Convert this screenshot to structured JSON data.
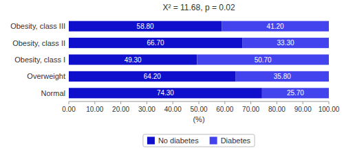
{
  "chart_data": {
    "type": "bar",
    "orientation": "horizontal",
    "stacked": true,
    "title": "X² = 11.68, p = 0.02",
    "xlabel": "(%)",
    "categories": [
      "Normal",
      "Overweight",
      "Obesity, class I",
      "Obesity, class II",
      "Obesity, class III"
    ],
    "series": [
      {
        "name": "No diabetes",
        "color": "#1010cc",
        "values": [
          74.3,
          64.2,
          49.3,
          66.7,
          58.8
        ],
        "value_labels": [
          "74.30",
          "64.20",
          "49.30",
          "66.70",
          "58.80"
        ]
      },
      {
        "name": "Diabetes",
        "color": "#4444ee",
        "values": [
          25.7,
          35.8,
          50.7,
          33.3,
          41.2
        ],
        "value_labels": [
          "25.70",
          "35.80",
          "50.70",
          "33.30",
          "41.20"
        ]
      }
    ],
    "xlim": [
      0,
      100
    ],
    "xticks": [
      {
        "value": 0,
        "label": "0.00"
      },
      {
        "value": 10,
        "label": "10.00"
      },
      {
        "value": 20,
        "label": "20.00"
      },
      {
        "value": 30,
        "label": "30.00"
      },
      {
        "value": 40,
        "label": "40.00"
      },
      {
        "value": 50,
        "label": "50.00"
      },
      {
        "value": 60,
        "label": "60.00"
      },
      {
        "value": 70,
        "label": "70.00"
      },
      {
        "value": 80,
        "label": "80.00"
      },
      {
        "value": 90,
        "label": "90.00"
      },
      {
        "value": 100,
        "label": "100.00"
      }
    ],
    "data_labels": true,
    "grid": false,
    "legend": "bottom"
  }
}
